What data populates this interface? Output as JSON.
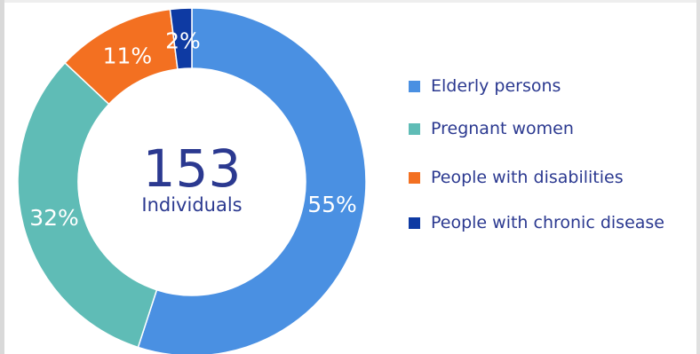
{
  "chart_data": {
    "type": "pie",
    "variant": "donut",
    "categories": [
      "Elderly persons",
      "Pregnant women",
      "People with disabilities",
      "People with chronic disease"
    ],
    "values": [
      55,
      32,
      11,
      2
    ],
    "value_labels": [
      "55%",
      "32%",
      "11%",
      "2%"
    ],
    "colors": [
      "#4a90e2",
      "#5fbcb6",
      "#f37021",
      "#0e3aa3"
    ],
    "center_total": "153",
    "center_caption": "Individuals",
    "legend_position": "right",
    "title": ""
  }
}
